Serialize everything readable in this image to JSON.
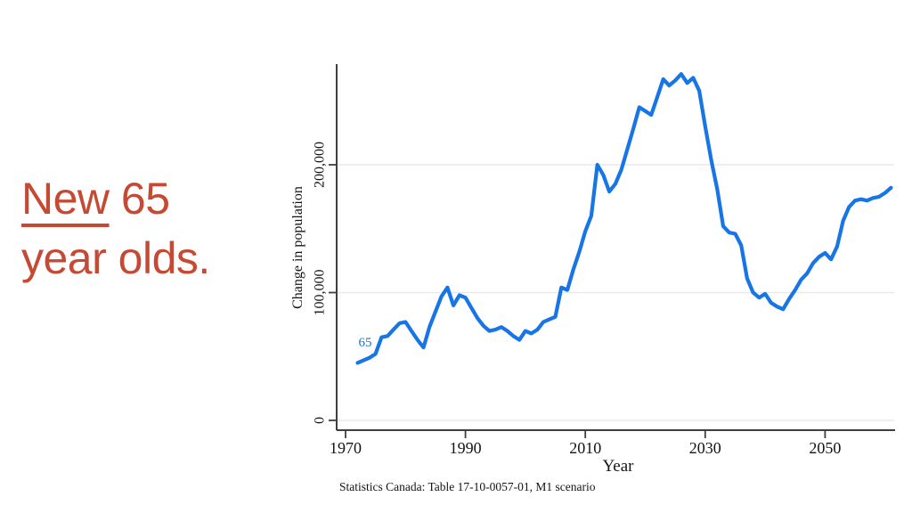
{
  "slide": {
    "headline": {
      "word_underlined": "New",
      "word_rest": " 65",
      "line2": "year olds.",
      "color": "#c64a33"
    }
  },
  "chart_data": {
    "type": "line",
    "title": "",
    "xlabel": "Year",
    "ylabel": "Change in population",
    "caption": "Statistics Canada: Table 17-10-0057-01, M1 scenario",
    "series_label": "65",
    "line_color": "#1775e5",
    "grid": true,
    "legend_position": "none",
    "xlim": [
      1968,
      2063
    ],
    "ylim": [
      0,
      280000
    ],
    "xticks": [
      "1970",
      "1990",
      "2010",
      "2030",
      "2050"
    ],
    "yticks": [
      "0",
      "100,000",
      "200,000"
    ],
    "series": [
      {
        "name": "Change in population of new 65 year olds, M1 scenario",
        "points": [
          [
            1972,
            45000
          ],
          [
            1973,
            47000
          ],
          [
            1974,
            49000
          ],
          [
            1975,
            52000
          ],
          [
            1976,
            65000
          ],
          [
            1977,
            66000
          ],
          [
            1978,
            71000
          ],
          [
            1979,
            76000
          ],
          [
            1980,
            77000
          ],
          [
            1981,
            70000
          ],
          [
            1982,
            63000
          ],
          [
            1983,
            57000
          ],
          [
            1984,
            73000
          ],
          [
            1985,
            85000
          ],
          [
            1986,
            97000
          ],
          [
            1987,
            104000
          ],
          [
            1988,
            90000
          ],
          [
            1989,
            98000
          ],
          [
            1990,
            96000
          ],
          [
            1991,
            88000
          ],
          [
            1992,
            80000
          ],
          [
            1993,
            74000
          ],
          [
            1994,
            70000
          ],
          [
            1995,
            71000
          ],
          [
            1996,
            73000
          ],
          [
            1997,
            70000
          ],
          [
            1998,
            66000
          ],
          [
            1999,
            63000
          ],
          [
            2000,
            70000
          ],
          [
            2001,
            68000
          ],
          [
            2002,
            71000
          ],
          [
            2003,
            77000
          ],
          [
            2004,
            79000
          ],
          [
            2005,
            81000
          ],
          [
            2006,
            104000
          ],
          [
            2007,
            102000
          ],
          [
            2008,
            118000
          ],
          [
            2009,
            132000
          ],
          [
            2010,
            148000
          ],
          [
            2011,
            160000
          ],
          [
            2012,
            200000
          ],
          [
            2013,
            192000
          ],
          [
            2014,
            179000
          ],
          [
            2015,
            185000
          ],
          [
            2016,
            196000
          ],
          [
            2017,
            212000
          ],
          [
            2018,
            228000
          ],
          [
            2019,
            245000
          ],
          [
            2020,
            242000
          ],
          [
            2021,
            239000
          ],
          [
            2022,
            253000
          ],
          [
            2023,
            267000
          ],
          [
            2024,
            262000
          ],
          [
            2025,
            266000
          ],
          [
            2026,
            271000
          ],
          [
            2027,
            264000
          ],
          [
            2028,
            268000
          ],
          [
            2029,
            258000
          ],
          [
            2030,
            230000
          ],
          [
            2031,
            204000
          ],
          [
            2032,
            181000
          ],
          [
            2033,
            152000
          ],
          [
            2034,
            147000
          ],
          [
            2035,
            146000
          ],
          [
            2036,
            137000
          ],
          [
            2037,
            111000
          ],
          [
            2038,
            100000
          ],
          [
            2039,
            96000
          ],
          [
            2040,
            99000
          ],
          [
            2041,
            92000
          ],
          [
            2042,
            89000
          ],
          [
            2043,
            87000
          ],
          [
            2044,
            95000
          ],
          [
            2045,
            102000
          ],
          [
            2046,
            110000
          ],
          [
            2047,
            115000
          ],
          [
            2048,
            123000
          ],
          [
            2049,
            128000
          ],
          [
            2050,
            131000
          ],
          [
            2051,
            126000
          ],
          [
            2052,
            136000
          ],
          [
            2053,
            156000
          ],
          [
            2054,
            167000
          ],
          [
            2055,
            172000
          ],
          [
            2056,
            173000
          ],
          [
            2057,
            172000
          ],
          [
            2058,
            174000
          ],
          [
            2059,
            175000
          ],
          [
            2060,
            178000
          ],
          [
            2061,
            182000
          ]
        ]
      }
    ]
  }
}
